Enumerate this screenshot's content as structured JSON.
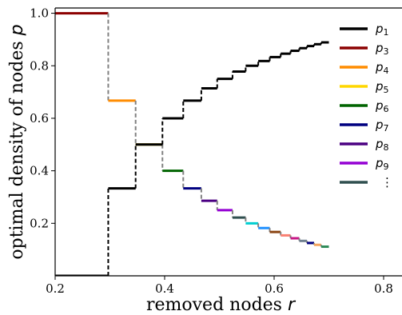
{
  "chart_data": {
    "type": "line",
    "xlabel": "removed nodes r",
    "ylabel": "optimal density of nodes p",
    "xlim": [
      0.2,
      0.8
    ],
    "ylim": [
      0.0,
      1.02
    ],
    "x_ticks": [
      "0.2",
      "0.4",
      "0.6",
      "0.8"
    ],
    "y_ticks": [
      "0.2",
      "0.4",
      "0.6",
      "0.8",
      "1.0"
    ],
    "legend": [
      {
        "label": "p1",
        "color": "#000000"
      },
      {
        "label": "p3",
        "color": "#8b0000"
      },
      {
        "label": "p4",
        "color": "#ff8c00"
      },
      {
        "label": "p5",
        "color": "#ffd700"
      },
      {
        "label": "p6",
        "color": "#006400"
      },
      {
        "label": "p7",
        "color": "#000080"
      },
      {
        "label": "p8",
        "color": "#4b0082"
      },
      {
        "label": "p9",
        "color": "#9400d3"
      },
      {
        "label": "⋮",
        "color": "#2f4f4f"
      }
    ],
    "series": [
      {
        "name": "p1",
        "color": "#000000",
        "steps": [
          [
            0.2,
            0.297,
            0.0
          ],
          [
            0.297,
            0.347,
            0.333
          ],
          [
            0.347,
            0.396,
            0.5
          ],
          [
            0.396,
            0.434,
            0.6
          ],
          [
            0.434,
            0.467,
            0.667
          ],
          [
            0.467,
            0.496,
            0.714
          ],
          [
            0.496,
            0.524,
            0.75
          ],
          [
            0.524,
            0.548,
            0.778
          ],
          [
            0.548,
            0.571,
            0.8
          ],
          [
            0.571,
            0.592,
            0.818
          ],
          [
            0.592,
            0.612,
            0.833
          ],
          [
            0.612,
            0.63,
            0.846
          ],
          [
            0.63,
            0.646,
            0.857
          ],
          [
            0.646,
            0.66,
            0.867
          ],
          [
            0.66,
            0.673,
            0.875
          ],
          [
            0.673,
            0.686,
            0.882
          ],
          [
            0.686,
            0.7,
            0.889
          ]
        ]
      },
      {
        "name": "p3",
        "color": "#8b0000",
        "steps": [
          [
            0.2,
            0.297,
            1.0
          ]
        ]
      },
      {
        "name": "p_k",
        "colors": [
          "#ff8c00",
          "#ffd700",
          "#006400",
          "#000080",
          "#4b0082",
          "#9400d3",
          "#2f4f4f",
          "#00ced1",
          "#1e90ff",
          "#8b4513",
          "#fa8072",
          "#c71585",
          "#708090",
          "#000080",
          "#f4a460",
          "#2e8b57"
        ],
        "steps": [
          [
            0.297,
            0.347,
            0.667
          ],
          [
            0.347,
            0.396,
            0.5
          ],
          [
            0.396,
            0.434,
            0.4
          ],
          [
            0.434,
            0.467,
            0.333
          ],
          [
            0.467,
            0.496,
            0.286
          ],
          [
            0.496,
            0.524,
            0.25
          ],
          [
            0.524,
            0.548,
            0.222
          ],
          [
            0.548,
            0.571,
            0.2
          ],
          [
            0.571,
            0.592,
            0.182
          ],
          [
            0.592,
            0.612,
            0.167
          ],
          [
            0.612,
            0.63,
            0.154
          ],
          [
            0.63,
            0.646,
            0.143
          ],
          [
            0.646,
            0.66,
            0.133
          ],
          [
            0.66,
            0.673,
            0.125
          ],
          [
            0.673,
            0.686,
            0.118
          ],
          [
            0.686,
            0.7,
            0.111
          ]
        ]
      }
    ]
  }
}
